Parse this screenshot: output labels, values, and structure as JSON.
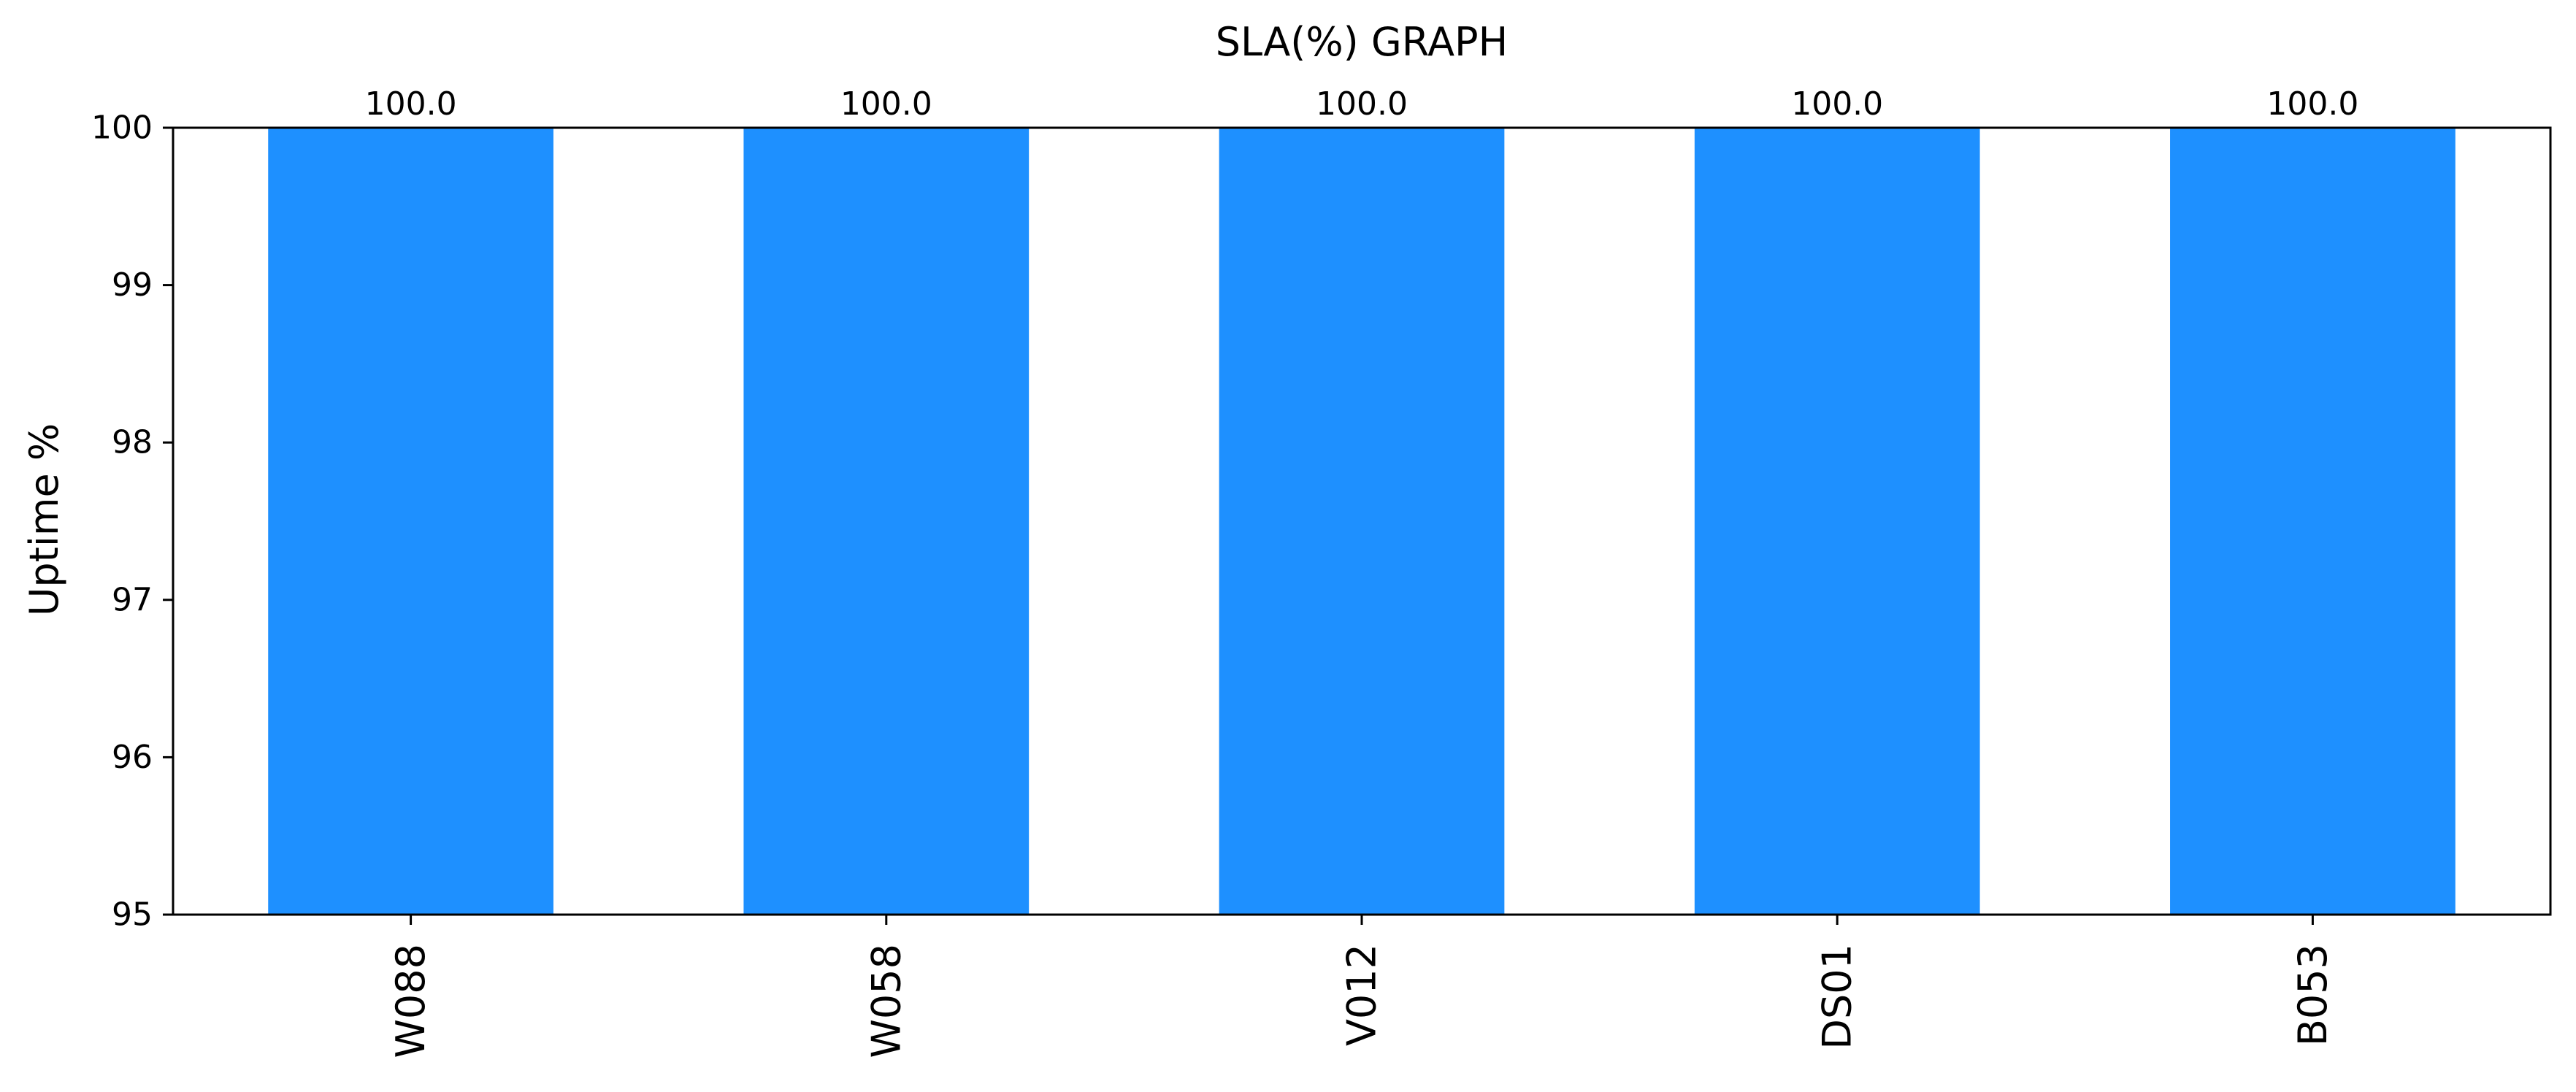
{
  "chart_data": {
    "type": "bar",
    "title": "SLA(%) GRAPH",
    "xlabel": "",
    "ylabel": "Uptime %",
    "categories": [
      "W088",
      "W058",
      "V012",
      "DS01",
      "B053"
    ],
    "values": [
      100.0,
      100.0,
      100.0,
      100.0,
      100.0
    ],
    "data_labels": [
      "100.0",
      "100.0",
      "100.0",
      "100.0",
      "100.0"
    ],
    "ylim": [
      95,
      100
    ],
    "yticks": [
      95,
      96,
      97,
      98,
      99,
      100
    ],
    "grid": false,
    "legend": "none",
    "bar_color": "#1E90FF"
  }
}
